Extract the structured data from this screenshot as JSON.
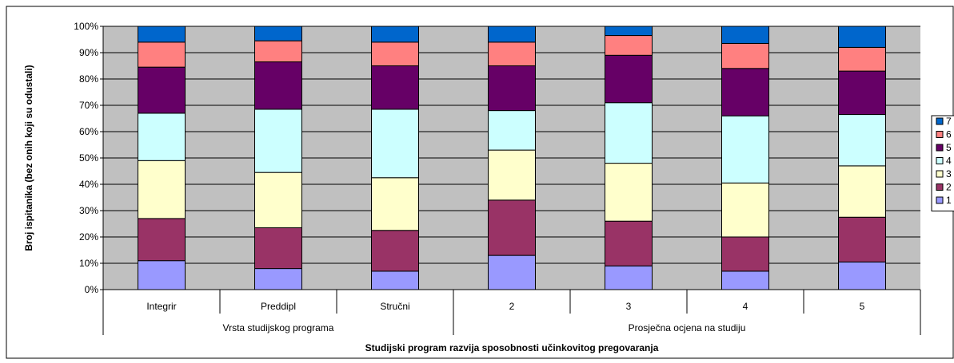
{
  "chart_data": {
    "type": "bar",
    "stacked": "percent",
    "title": "",
    "xlabel": "Studijski program razvija sposobnosti učinkovitog pregovaranja",
    "ylabel": "Broj ispitanika (bez onih koji su odustali)",
    "ylim": [
      0,
      100
    ],
    "y_ticks": [
      "0%",
      "10%",
      "20%",
      "30%",
      "40%",
      "50%",
      "60%",
      "70%",
      "80%",
      "90%",
      "100%"
    ],
    "grid": true,
    "legend_position": "right",
    "groups": [
      {
        "label": "Vrsta studijskog programa",
        "categories": [
          "Integrir",
          "Preddipl",
          "Stručni"
        ]
      },
      {
        "label": "Prosječna ocjena na studiju",
        "categories": [
          "2",
          "3",
          "4",
          "5"
        ]
      }
    ],
    "categories": [
      "Integrir",
      "Preddipl",
      "Stručni",
      "2",
      "3",
      "4",
      "5"
    ],
    "series": [
      {
        "name": "1",
        "color": "#9999ff",
        "values": [
          11.0,
          8.0,
          7.0,
          13.0,
          9.0,
          7.0,
          10.5
        ]
      },
      {
        "name": "2",
        "color": "#993366",
        "values": [
          16.0,
          15.5,
          15.5,
          21.0,
          17.0,
          13.0,
          17.0
        ]
      },
      {
        "name": "3",
        "color": "#ffffcc",
        "values": [
          22.0,
          21.0,
          20.0,
          19.0,
          22.0,
          20.5,
          19.5
        ]
      },
      {
        "name": "4",
        "color": "#ccffff",
        "values": [
          18.0,
          24.0,
          26.0,
          15.0,
          23.0,
          25.5,
          19.5
        ]
      },
      {
        "name": "5",
        "color": "#660066",
        "values": [
          17.5,
          18.0,
          16.5,
          17.0,
          18.0,
          18.0,
          16.5
        ]
      },
      {
        "name": "6",
        "color": "#ff8080",
        "values": [
          9.5,
          8.0,
          9.0,
          9.0,
          7.5,
          9.5,
          9.0
        ]
      },
      {
        "name": "7",
        "color": "#0066cc",
        "values": [
          6.0,
          5.5,
          6.0,
          6.0,
          3.5,
          6.5,
          8.0
        ]
      }
    ]
  }
}
